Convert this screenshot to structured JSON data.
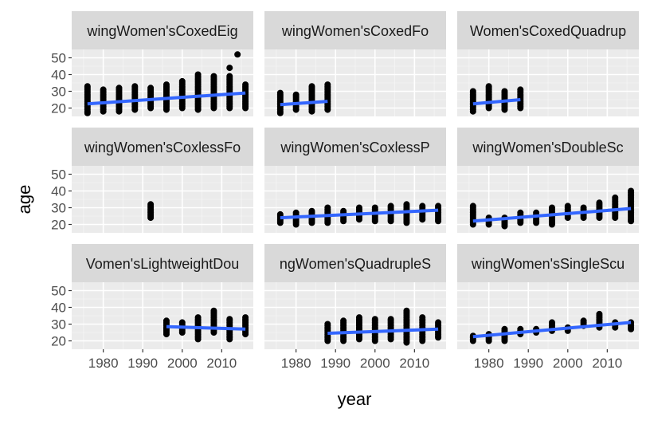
{
  "chart_data": {
    "type": "scatter",
    "xlabel": "year",
    "ylabel": "age",
    "xlim": [
      1972,
      2018
    ],
    "ylim": [
      15,
      55
    ],
    "x_ticks": [
      1980,
      1990,
      2000,
      2010
    ],
    "x_tick_labels": [
      "1980",
      "1990",
      "2000",
      "2010"
    ],
    "y_ticks": [
      20,
      30,
      40,
      50
    ],
    "y_tick_labels": [
      "20",
      "30",
      "40",
      "50"
    ],
    "grid": true,
    "trend_color": "#3366FF",
    "point_color": "#000000",
    "panel_background": "#EBEBEB",
    "strip_background": "#D9D9D9",
    "panels": [
      {
        "strip": "wingWomen'sCoxedEig",
        "series": [
          {
            "x": 1976,
            "lo": 17,
            "hi": 33
          },
          {
            "x": 1980,
            "lo": 18,
            "hi": 31
          },
          {
            "x": 1984,
            "lo": 18,
            "hi": 32
          },
          {
            "x": 1988,
            "lo": 19,
            "hi": 33
          },
          {
            "x": 1992,
            "lo": 20,
            "hi": 32
          },
          {
            "x": 1996,
            "lo": 19,
            "hi": 34
          },
          {
            "x": 2000,
            "lo": 20,
            "hi": 36
          },
          {
            "x": 2004,
            "lo": 19,
            "hi": 40
          },
          {
            "x": 2008,
            "lo": 20,
            "hi": 39
          },
          {
            "x": 2012,
            "lo": 20,
            "hi": 39
          },
          {
            "x": 2016,
            "lo": 20,
            "hi": 34
          }
        ],
        "extra_points": [
          {
            "x": 2012,
            "y": 44
          },
          {
            "x": 2014,
            "y": 52
          }
        ],
        "trend": [
          {
            "x": 1976,
            "y": 22.5
          },
          {
            "x": 2016,
            "y": 29
          }
        ]
      },
      {
        "strip": "wingWomen'sCoxedFo",
        "series": [
          {
            "x": 1976,
            "lo": 17,
            "hi": 29
          },
          {
            "x": 1980,
            "lo": 19,
            "hi": 28
          },
          {
            "x": 1984,
            "lo": 18,
            "hi": 33
          },
          {
            "x": 1988,
            "lo": 19,
            "hi": 34
          }
        ],
        "extra_points": [],
        "trend": [
          {
            "x": 1976,
            "y": 22
          },
          {
            "x": 1988,
            "y": 24
          }
        ]
      },
      {
        "strip": "Women'sCoxedQuadrup",
        "series": [
          {
            "x": 1976,
            "lo": 18,
            "hi": 30
          },
          {
            "x": 1980,
            "lo": 20,
            "hi": 33
          },
          {
            "x": 1984,
            "lo": 19,
            "hi": 30
          },
          {
            "x": 1988,
            "lo": 20,
            "hi": 31
          }
        ],
        "extra_points": [],
        "trend": [
          {
            "x": 1976,
            "y": 22.5
          },
          {
            "x": 1988,
            "y": 25
          }
        ]
      },
      {
        "strip": "wingWomen'sCoxlessFo",
        "series": [
          {
            "x": 1992,
            "lo": 24,
            "hi": 32
          }
        ],
        "extra_points": [],
        "trend": []
      },
      {
        "strip": "wingWomen'sCoxlessP",
        "series": [
          {
            "x": 1976,
            "lo": 21,
            "hi": 26
          },
          {
            "x": 1980,
            "lo": 20,
            "hi": 27
          },
          {
            "x": 1984,
            "lo": 21,
            "hi": 28
          },
          {
            "x": 1988,
            "lo": 21,
            "hi": 30
          },
          {
            "x": 1992,
            "lo": 22,
            "hi": 28
          },
          {
            "x": 1996,
            "lo": 23,
            "hi": 30
          },
          {
            "x": 2000,
            "lo": 22,
            "hi": 30
          },
          {
            "x": 2004,
            "lo": 22,
            "hi": 31
          },
          {
            "x": 2008,
            "lo": 21,
            "hi": 32
          },
          {
            "x": 2012,
            "lo": 23,
            "hi": 31
          },
          {
            "x": 2016,
            "lo": 22,
            "hi": 31
          }
        ],
        "extra_points": [],
        "trend": [
          {
            "x": 1976,
            "y": 24
          },
          {
            "x": 2016,
            "y": 28.5
          }
        ]
      },
      {
        "strip": "wingWomen'sDoubleSc",
        "series": [
          {
            "x": 1976,
            "lo": 20,
            "hi": 31
          },
          {
            "x": 1980,
            "lo": 20,
            "hi": 24
          },
          {
            "x": 1984,
            "lo": 19,
            "hi": 24
          },
          {
            "x": 1988,
            "lo": 21,
            "hi": 27
          },
          {
            "x": 1992,
            "lo": 21,
            "hi": 27
          },
          {
            "x": 1996,
            "lo": 20,
            "hi": 30
          },
          {
            "x": 2000,
            "lo": 24,
            "hi": 31
          },
          {
            "x": 2004,
            "lo": 24,
            "hi": 30
          },
          {
            "x": 2008,
            "lo": 24,
            "hi": 33
          },
          {
            "x": 2012,
            "lo": 24,
            "hi": 36
          },
          {
            "x": 2016,
            "lo": 22,
            "hi": 40
          }
        ],
        "extra_points": [],
        "trend": [
          {
            "x": 1976,
            "y": 22
          },
          {
            "x": 2016,
            "y": 29.5
          }
        ]
      },
      {
        "strip": "Vomen'sLightweightDou",
        "series": [
          {
            "x": 1996,
            "lo": 24,
            "hi": 32
          },
          {
            "x": 2000,
            "lo": 25,
            "hi": 31
          },
          {
            "x": 2004,
            "lo": 21,
            "hi": 34
          },
          {
            "x": 2008,
            "lo": 25,
            "hi": 38
          },
          {
            "x": 2012,
            "lo": 21,
            "hi": 33
          },
          {
            "x": 2016,
            "lo": 24,
            "hi": 34
          }
        ],
        "extra_points": [],
        "trend": [
          {
            "x": 1996,
            "y": 28.5
          },
          {
            "x": 2016,
            "y": 27
          }
        ]
      },
      {
        "strip": "ngWomen'sQuadrupleS",
        "series": [
          {
            "x": 1988,
            "lo": 20,
            "hi": 30
          },
          {
            "x": 1992,
            "lo": 20,
            "hi": 32
          },
          {
            "x": 1996,
            "lo": 21,
            "hi": 34
          },
          {
            "x": 2000,
            "lo": 20,
            "hi": 33
          },
          {
            "x": 2004,
            "lo": 21,
            "hi": 33
          },
          {
            "x": 2008,
            "lo": 19,
            "hi": 38
          },
          {
            "x": 2012,
            "lo": 20,
            "hi": 34
          },
          {
            "x": 2016,
            "lo": 22,
            "hi": 31
          }
        ],
        "extra_points": [],
        "trend": [
          {
            "x": 1988,
            "y": 24.5
          },
          {
            "x": 2016,
            "y": 27
          }
        ]
      },
      {
        "strip": "wingWomen'sSingleScu",
        "series": [
          {
            "x": 1976,
            "lo": 20,
            "hi": 23
          },
          {
            "x": 1980,
            "lo": 20,
            "hi": 24
          },
          {
            "x": 1984,
            "lo": 20,
            "hi": 27
          },
          {
            "x": 1988,
            "lo": 24,
            "hi": 27
          },
          {
            "x": 1992,
            "lo": 25,
            "hi": 27
          },
          {
            "x": 1996,
            "lo": 26,
            "hi": 31
          },
          {
            "x": 2000,
            "lo": 26,
            "hi": 28
          },
          {
            "x": 2004,
            "lo": 29,
            "hi": 32
          },
          {
            "x": 2008,
            "lo": 28,
            "hi": 36
          },
          {
            "x": 2012,
            "lo": 28,
            "hi": 31
          },
          {
            "x": 2016,
            "lo": 27,
            "hi": 31
          }
        ],
        "extra_points": [],
        "trend": [
          {
            "x": 1976,
            "y": 22.5
          },
          {
            "x": 2016,
            "y": 31
          }
        ]
      }
    ]
  }
}
